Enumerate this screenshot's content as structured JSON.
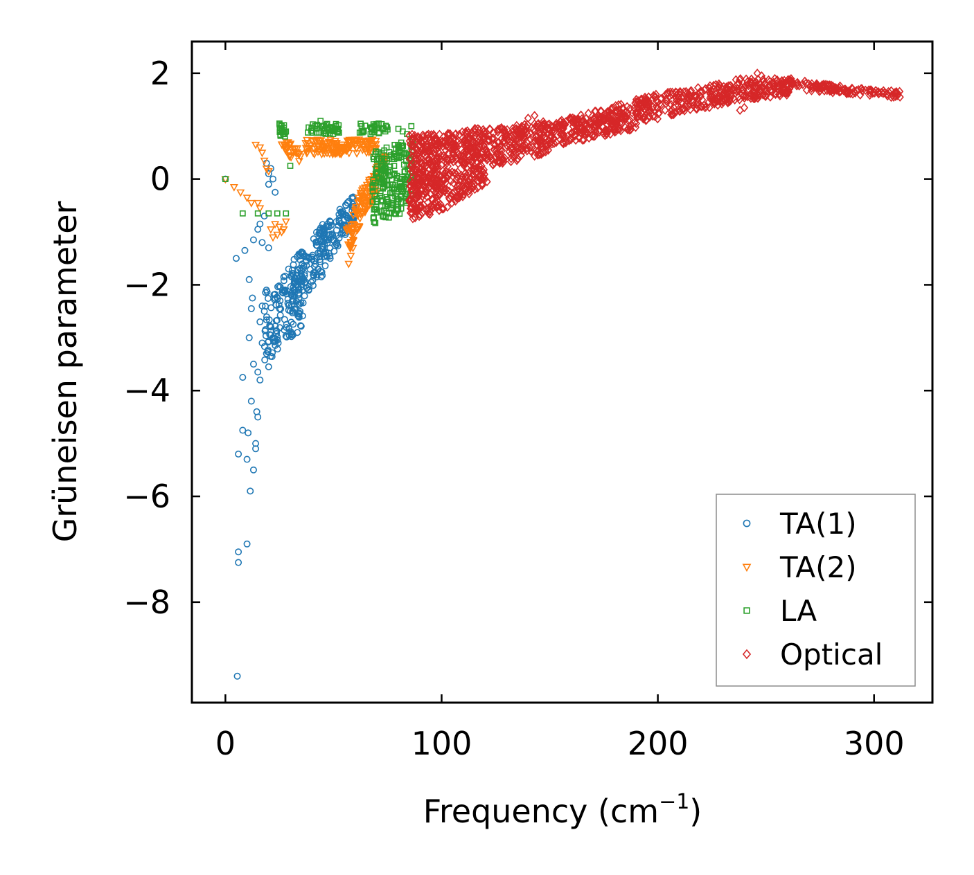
{
  "chart_data": {
    "type": "scatter",
    "title": "",
    "xlabel": "Frequency (cm",
    "xlabel_sup": "−1",
    "xlabel_tail": ")",
    "ylabel": "Grüneisen parameter",
    "xlim": [
      -15.5,
      327
    ],
    "ylim": [
      -9.9,
      2.6
    ],
    "xticks": [
      0,
      100,
      200,
      300
    ],
    "xtick_labels": [
      "0",
      "100",
      "200",
      "300"
    ],
    "yticks": [
      2,
      0,
      -2,
      -4,
      -6,
      -8
    ],
    "ytick_labels": [
      "2",
      "0",
      "−2",
      "−4",
      "−6",
      "−8"
    ],
    "grid": false,
    "legend_position": "bottom-right",
    "series": [
      {
        "name": "TA(1)",
        "marker": "circle",
        "color": "#1f77b4",
        "points": [
          [
            0,
            0
          ],
          [
            5,
            -1.5
          ],
          [
            6,
            -5.2
          ],
          [
            6,
            -7.05
          ],
          [
            6,
            -7.25
          ],
          [
            5.5,
            -9.4
          ],
          [
            8,
            -3.75
          ],
          [
            8,
            -4.75
          ],
          [
            9,
            -1.35
          ],
          [
            10,
            -6.9
          ],
          [
            10,
            -5.3
          ],
          [
            10.5,
            -4.8
          ],
          [
            11,
            -3
          ],
          [
            11,
            -1.9
          ],
          [
            11.5,
            -5.9
          ],
          [
            12,
            -2.45
          ],
          [
            12,
            -4.2
          ],
          [
            12.5,
            -2.25
          ],
          [
            13,
            -5.5
          ],
          [
            13,
            -3.5
          ],
          [
            13,
            -1.15
          ],
          [
            14,
            -5.1
          ],
          [
            14,
            -5.0
          ],
          [
            14.5,
            -4.4
          ],
          [
            15,
            -4.5
          ],
          [
            15,
            -3.65
          ],
          [
            15,
            -0.95
          ],
          [
            16,
            -0.85
          ],
          [
            16,
            -2.7
          ],
          [
            16,
            -3.8
          ],
          [
            17,
            -1.2
          ],
          [
            17,
            -2.4
          ],
          [
            17,
            -3.1
          ],
          [
            18,
            -0.7
          ],
          [
            18,
            -2.5
          ],
          [
            19,
            -3.3
          ],
          [
            19,
            0.3
          ],
          [
            20,
            -3.55
          ],
          [
            20,
            -1.3
          ],
          [
            21,
            -2.95
          ],
          [
            22,
            -3.0
          ],
          [
            21,
            0.2
          ],
          [
            22,
            0.0
          ],
          [
            23,
            -0.25
          ],
          [
            20,
            0.1
          ],
          [
            20,
            -0.1
          ]
        ],
        "bands": [
          {
            "x0": 18,
            "x1": 36,
            "y0a": -3.5,
            "y0b": -2.1,
            "y1a": -2.8,
            "y1b": -1.3,
            "n": 140
          },
          {
            "x0": 30,
            "x1": 46,
            "y0a": -2.6,
            "y0b": -1.6,
            "y1a": -1.8,
            "y1b": -0.8,
            "n": 110
          },
          {
            "x0": 42,
            "x1": 60,
            "y0a": -1.9,
            "y0b": -1.0,
            "y1a": -0.8,
            "y1b": -0.25,
            "n": 120
          }
        ]
      },
      {
        "name": "TA(2)",
        "marker": "triangle-down",
        "color": "#ff7f0e",
        "points": [
          [
            0,
            0
          ],
          [
            4,
            -0.15
          ],
          [
            7,
            -0.25
          ],
          [
            10,
            -0.35
          ],
          [
            12,
            -0.45
          ],
          [
            15,
            -0.45
          ],
          [
            16,
            -0.55
          ],
          [
            14,
            0.65
          ],
          [
            16,
            0.6
          ],
          [
            17,
            0.5
          ],
          [
            18,
            0.35
          ],
          [
            19,
            0.2
          ],
          [
            20,
            0.15
          ],
          [
            21,
            -0.95
          ],
          [
            22,
            -1.1
          ],
          [
            23,
            -0.85
          ],
          [
            24,
            -1.05
          ],
          [
            25,
            -0.9
          ],
          [
            26,
            -1.0
          ],
          [
            27,
            -0.95
          ],
          [
            28,
            -0.8
          ],
          [
            57,
            -1.6
          ],
          [
            58,
            -1.45
          ],
          [
            59,
            -1.3
          ]
        ],
        "bands": [
          {
            "x0": 26,
            "x1": 35,
            "y0a": 0.55,
            "y0b": 0.8,
            "y1a": 0.25,
            "y1b": 0.55,
            "n": 30
          },
          {
            "x0": 37,
            "x1": 70,
            "y0a": 0.45,
            "y0b": 0.75,
            "y1a": 0.5,
            "y1b": 0.75,
            "n": 140
          },
          {
            "x0": 56,
            "x1": 64,
            "y0a": -1.5,
            "y0b": -0.9,
            "y1a": -0.7,
            "y1b": -0.1,
            "n": 60
          },
          {
            "x0": 64,
            "x1": 74,
            "y0a": -0.7,
            "y0b": -0.2,
            "y1a": 0.0,
            "y1b": 0.55,
            "n": 70
          }
        ]
      },
      {
        "name": "LA",
        "marker": "square",
        "color": "#2ca02c",
        "points": [
          [
            0,
            0
          ],
          [
            8,
            -0.65
          ],
          [
            15,
            -0.65
          ],
          [
            20,
            -0.65
          ],
          [
            24,
            -0.65
          ],
          [
            28,
            -0.65
          ],
          [
            30,
            0.25
          ],
          [
            25,
            1.05
          ],
          [
            26,
            0.95
          ],
          [
            27,
            0.85
          ],
          [
            28,
            0.9
          ],
          [
            44,
            1.1
          ],
          [
            45,
            1.0
          ],
          [
            46,
            0.95
          ],
          [
            51,
            1.0
          ],
          [
            52,
            0.95
          ],
          [
            63,
            1.0
          ],
          [
            64,
            0.9
          ],
          [
            68,
            0.95
          ],
          [
            69,
            1.0
          ],
          [
            73,
            0.95
          ],
          [
            80,
            0.95
          ],
          [
            82,
            0.9
          ],
          [
            84,
            0.85
          ],
          [
            86,
            1.0
          ]
        ],
        "bands": [
          {
            "x0": 25,
            "x1": 28,
            "y0a": 0.8,
            "y0b": 1.05,
            "y1a": 0.8,
            "y1b": 1.05,
            "n": 16
          },
          {
            "x0": 38,
            "x1": 53,
            "y0a": 0.85,
            "y0b": 1.05,
            "y1a": 0.85,
            "y1b": 1.05,
            "n": 40
          },
          {
            "x0": 62,
            "x1": 75,
            "y0a": 0.85,
            "y0b": 1.05,
            "y1a": 0.85,
            "y1b": 1.05,
            "n": 30
          },
          {
            "x0": 68,
            "x1": 87,
            "y0a": -0.85,
            "y0b": 0.5,
            "y1a": -0.6,
            "y1b": 0.8,
            "n": 220
          }
        ]
      },
      {
        "name": "Optical",
        "marker": "diamond",
        "color": "#d62728",
        "points": [
          [
            121,
            -0.05
          ],
          [
            120,
            0.0
          ],
          [
            119,
            -0.1
          ],
          [
            140,
            1.15
          ],
          [
            143,
            1.2
          ],
          [
            179,
            1.05
          ],
          [
            181,
            1.05
          ],
          [
            190,
            1.05
          ],
          [
            224,
            1.65
          ],
          [
            228,
            1.75
          ],
          [
            244,
            1.85
          ],
          [
            246,
            2.0
          ],
          [
            248,
            1.95
          ],
          [
            250,
            1.65
          ],
          [
            252,
            1.55
          ],
          [
            238,
            1.3
          ],
          [
            240,
            1.35
          ],
          [
            256,
            1.6
          ],
          [
            262,
            1.8
          ],
          [
            268,
            1.85
          ],
          [
            276,
            1.78
          ],
          [
            284,
            1.72
          ],
          [
            290,
            1.7
          ],
          [
            296,
            1.68
          ],
          [
            302,
            1.65
          ],
          [
            306,
            1.6
          ],
          [
            312,
            1.55
          ]
        ],
        "bands": [
          {
            "x0": 85,
            "x1": 100,
            "y0a": -0.8,
            "y0b": 0.85,
            "y1a": -0.6,
            "y1b": 0.85,
            "n": 300
          },
          {
            "x0": 100,
            "x1": 120,
            "y0a": -0.6,
            "y0b": 0.85,
            "y1a": -0.1,
            "y1b": 1.0,
            "n": 280
          },
          {
            "x0": 120,
            "x1": 150,
            "y0a": 0.2,
            "y0b": 0.95,
            "y1a": 0.5,
            "y1b": 1.1,
            "n": 220
          },
          {
            "x0": 150,
            "x1": 190,
            "y0a": 0.6,
            "y0b": 1.05,
            "y1a": 0.95,
            "y1b": 1.5,
            "n": 240
          },
          {
            "x0": 190,
            "x1": 235,
            "y0a": 1.05,
            "y0b": 1.55,
            "y1a": 1.45,
            "y1b": 1.85,
            "n": 220
          },
          {
            "x0": 235,
            "x1": 262,
            "y0a": 1.45,
            "y0b": 1.9,
            "y1a": 1.6,
            "y1b": 1.9,
            "n": 130
          },
          {
            "x0": 262,
            "x1": 312,
            "y0a": 1.7,
            "y0b": 1.85,
            "y1a": 1.52,
            "y1b": 1.66,
            "n": 110
          }
        ]
      }
    ]
  }
}
